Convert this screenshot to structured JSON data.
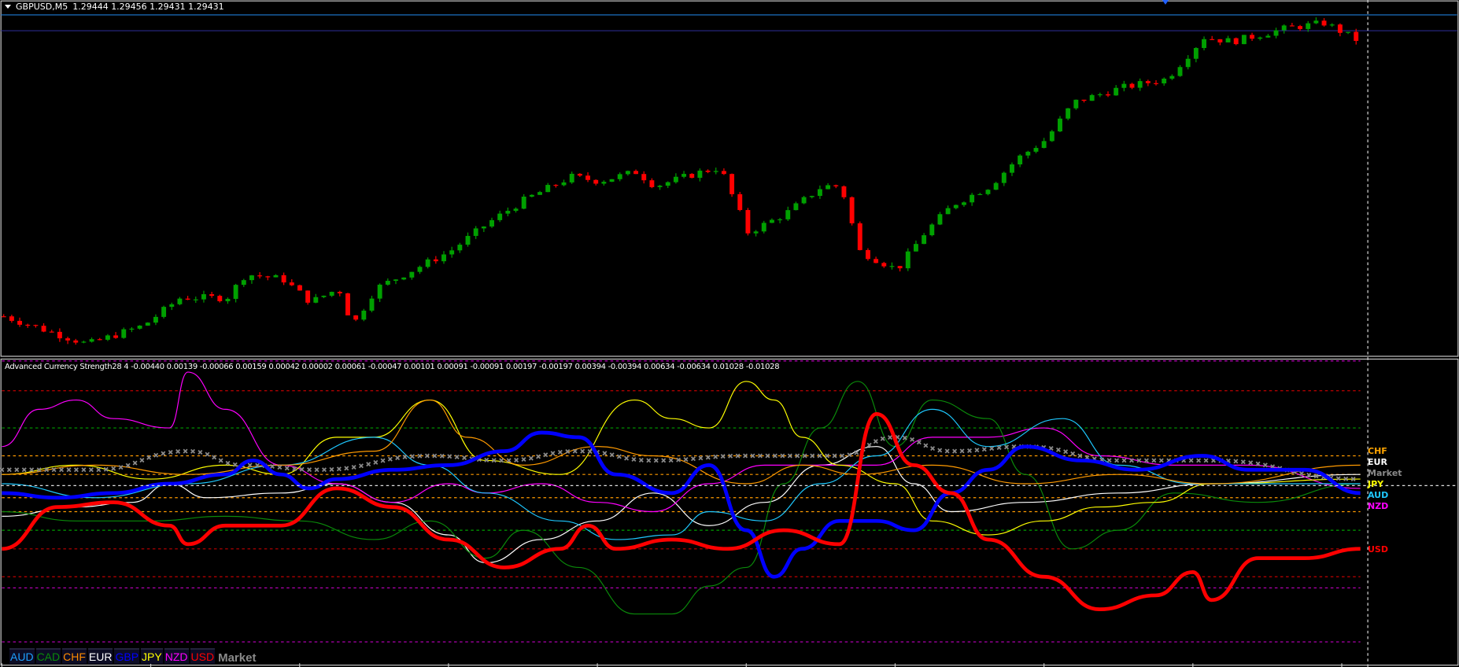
{
  "header": {
    "symbol": "GBPUSD,M5",
    "ohlc": "1.29444 1.29456 1.29431 1.29431"
  },
  "indicator": {
    "title": "Advanced Currency Strength28 4 -0.00440 0.00139 -0.00066 0.00159 0.00042 0.00002 0.00061 -0.00047 0.00101 0.00091 -0.00091 0.00197 -0.00197 0.00394 -0.00394 0.00634 -0.00634 0.01028 -0.01028"
  },
  "legend": {
    "buttons": [
      {
        "label": "AUD",
        "color": "#1ea0ff"
      },
      {
        "label": "CAD",
        "color": "#0a8a0a"
      },
      {
        "label": "CHF",
        "color": "#ff8c00"
      },
      {
        "label": "EUR",
        "color": "#ffffff"
      },
      {
        "label": "GBP",
        "color": "#0000ff"
      },
      {
        "label": "JPY",
        "color": "#ffff00"
      },
      {
        "label": "NZD",
        "color": "#ff00ff"
      },
      {
        "label": "USD",
        "color": "#ff0000"
      }
    ],
    "market": "Market"
  },
  "right_labels": [
    {
      "label": "CHF",
      "color": "#ffa500"
    },
    {
      "label": "EUR",
      "color": "#ffffff"
    },
    {
      "label": "Market",
      "color": "#8a8a8a"
    },
    {
      "label": "JPY",
      "color": "#ffff00"
    },
    {
      "label": "AUD",
      "color": "#1ec8ff"
    },
    {
      "label": "NZD",
      "color": "#ff00ff"
    },
    {
      "label": "USD",
      "color": "#ff0000"
    }
  ],
  "chart_data": [
    {
      "type": "candlestick",
      "symbol": "GBPUSD",
      "timeframe": "M5",
      "bull_color": "#00a000",
      "bear_color": "#ff0000",
      "close_anchors": [
        [
          0,
          1.2899
        ],
        [
          9,
          1.28945
        ],
        [
          15,
          1.28975
        ],
        [
          19,
          1.2902
        ],
        [
          24,
          1.2902
        ],
        [
          26,
          1.29058
        ],
        [
          30,
          1.2905
        ],
        [
          33,
          1.29013
        ],
        [
          36,
          1.29035
        ],
        [
          37.5,
          1.28975
        ],
        [
          40,
          1.29035
        ],
        [
          44,
          1.29065
        ],
        [
          48,
          1.29095
        ],
        [
          52,
          1.2914
        ],
        [
          56,
          1.29178
        ],
        [
          61,
          1.29215
        ],
        [
          64,
          1.29208
        ],
        [
          68,
          1.29223
        ],
        [
          70,
          1.292
        ],
        [
          75,
          1.29223
        ],
        [
          77,
          1.2923
        ],
        [
          80,
          1.29125
        ],
        [
          84,
          1.29155
        ],
        [
          88,
          1.292
        ],
        [
          90,
          1.292
        ],
        [
          92,
          1.29095
        ],
        [
          96,
          1.29065
        ],
        [
          99,
          1.29125
        ],
        [
          102,
          1.2917
        ],
        [
          106,
          1.292
        ],
        [
          109,
          1.29245
        ],
        [
          112,
          1.29275
        ],
        [
          115,
          1.29335
        ],
        [
          120,
          1.29358
        ],
        [
          125,
          1.29373
        ],
        [
          129,
          1.2944
        ],
        [
          132,
          1.29433
        ],
        [
          138,
          1.29455
        ],
        [
          142,
          1.29463
        ],
        [
          146,
          1.29431
        ]
      ]
    },
    {
      "type": "line",
      "series": [
        {
          "name": "USD",
          "color": "#ff0000",
          "width": 4,
          "points": [
            [
              0,
              -68
            ],
            [
              6,
              -23
            ],
            [
              12,
              -18
            ],
            [
              18,
              -43
            ],
            [
              20,
              -63
            ],
            [
              24,
              -43
            ],
            [
              30,
              -43
            ],
            [
              36,
              -3
            ],
            [
              42,
              -23
            ],
            [
              48,
              -58
            ],
            [
              54,
              -88
            ],
            [
              60,
              -68
            ],
            [
              63,
              -43
            ],
            [
              66,
              -68
            ],
            [
              72,
              -58
            ],
            [
              78,
              -68
            ],
            [
              84,
              -48
            ],
            [
              90,
              -63
            ],
            [
              94,
              77
            ],
            [
              98,
              22
            ],
            [
              102,
              -8
            ],
            [
              106,
              -58
            ],
            [
              112,
              -98
            ],
            [
              118,
              -133
            ],
            [
              124,
              -118
            ],
            [
              128,
              -93
            ],
            [
              130,
              -123
            ],
            [
              135,
              -78
            ],
            [
              140,
              -78
            ],
            [
              146,
              -68
            ]
          ]
        },
        {
          "name": "GBP",
          "color": "#0000ff",
          "width": 4,
          "points": [
            [
              0,
              -8
            ],
            [
              6,
              -13
            ],
            [
              12,
              -8
            ],
            [
              18,
              2
            ],
            [
              24,
              12
            ],
            [
              27,
              27
            ],
            [
              30,
              12
            ],
            [
              33,
              -3
            ],
            [
              36,
              7
            ],
            [
              42,
              17
            ],
            [
              48,
              22
            ],
            [
              54,
              37
            ],
            [
              58,
              57
            ],
            [
              62,
              52
            ],
            [
              66,
              12
            ],
            [
              72,
              -8
            ],
            [
              76,
              22
            ],
            [
              80,
              -48
            ],
            [
              83,
              -98
            ],
            [
              86,
              -68
            ],
            [
              90,
              -38
            ],
            [
              94,
              -38
            ],
            [
              98,
              -48
            ],
            [
              102,
              -8
            ],
            [
              106,
              17
            ],
            [
              110,
              42
            ],
            [
              116,
              27
            ],
            [
              122,
              17
            ],
            [
              129,
              32
            ],
            [
              134,
              17
            ],
            [
              140,
              17
            ],
            [
              146,
              -8
            ]
          ]
        },
        {
          "name": "Market",
          "color": "#8a8a8a",
          "width": 2,
          "marker": "x",
          "points": [
            [
              0,
              17
            ],
            [
              10,
              17
            ],
            [
              20,
              37
            ],
            [
              26,
              22
            ],
            [
              34,
              17
            ],
            [
              46,
              32
            ],
            [
              54,
              27
            ],
            [
              62,
              37
            ],
            [
              70,
              27
            ],
            [
              80,
              32
            ],
            [
              90,
              32
            ],
            [
              96,
              52
            ],
            [
              102,
              37
            ],
            [
              110,
              42
            ],
            [
              120,
              27
            ],
            [
              130,
              27
            ],
            [
              146,
              7
            ]
          ]
        },
        {
          "name": "CHF",
          "color": "#ff9a00",
          "width": 1,
          "points": [
            [
              0,
              12
            ],
            [
              10,
              22
            ],
            [
              20,
              12
            ],
            [
              30,
              22
            ],
            [
              40,
              37
            ],
            [
              46,
              92
            ],
            [
              50,
              52
            ],
            [
              56,
              22
            ],
            [
              64,
              42
            ],
            [
              70,
              32
            ],
            [
              80,
              2
            ],
            [
              86,
              22
            ],
            [
              92,
              12
            ],
            [
              100,
              22
            ],
            [
              110,
              2
            ],
            [
              120,
              12
            ],
            [
              130,
              2
            ],
            [
              146,
              22
            ]
          ]
        },
        {
          "name": "AUD",
          "color": "#1ec8ff",
          "width": 1,
          "points": [
            [
              0,
              2
            ],
            [
              10,
              -13
            ],
            [
              20,
              2
            ],
            [
              30,
              22
            ],
            [
              40,
              52
            ],
            [
              46,
              22
            ],
            [
              52,
              -8
            ],
            [
              60,
              -38
            ],
            [
              66,
              -58
            ],
            [
              72,
              -53
            ],
            [
              76,
              -28
            ],
            [
              82,
              -38
            ],
            [
              88,
              2
            ],
            [
              94,
              32
            ],
            [
              100,
              82
            ],
            [
              106,
              42
            ],
            [
              114,
              72
            ],
            [
              120,
              22
            ],
            [
              128,
              2
            ],
            [
              146,
              2
            ]
          ]
        },
        {
          "name": "JPY",
          "color": "#ffff00",
          "width": 1,
          "points": [
            [
              0,
              12
            ],
            [
              8,
              22
            ],
            [
              16,
              7
            ],
            [
              24,
              22
            ],
            [
              30,
              12
            ],
            [
              36,
              52
            ],
            [
              40,
              52
            ],
            [
              46,
              92
            ],
            [
              52,
              27
            ],
            [
              60,
              12
            ],
            [
              68,
              92
            ],
            [
              72,
              72
            ],
            [
              76,
              62
            ],
            [
              80,
              112
            ],
            [
              83,
              92
            ],
            [
              86,
              52
            ],
            [
              90,
              22
            ],
            [
              96,
              2
            ],
            [
              100,
              -38
            ],
            [
              106,
              -53
            ],
            [
              112,
              -38
            ],
            [
              118,
              -23
            ],
            [
              124,
              -18
            ],
            [
              130,
              2
            ],
            [
              146,
              7
            ]
          ]
        },
        {
          "name": "CAD",
          "color": "#0a8a0a",
          "width": 1,
          "points": [
            [
              0,
              -28
            ],
            [
              8,
              -38
            ],
            [
              16,
              -38
            ],
            [
              24,
              -33
            ],
            [
              32,
              -38
            ],
            [
              40,
              -58
            ],
            [
              46,
              -38
            ],
            [
              52,
              -78
            ],
            [
              56,
              -48
            ],
            [
              62,
              -88
            ],
            [
              68,
              -138
            ],
            [
              72,
              -138
            ],
            [
              76,
              -108
            ],
            [
              80,
              -88
            ],
            [
              84,
              2
            ],
            [
              88,
              62
            ],
            [
              92,
              112
            ],
            [
              96,
              42
            ],
            [
              100,
              92
            ],
            [
              106,
              72
            ],
            [
              110,
              12
            ],
            [
              115,
              -68
            ],
            [
              120,
              -48
            ],
            [
              126,
              -8
            ],
            [
              135,
              -18
            ],
            [
              146,
              2
            ]
          ]
        },
        {
          "name": "NZD",
          "color": "#ff00ff",
          "width": 1,
          "points": [
            [
              0,
              42
            ],
            [
              4,
              82
            ],
            [
              8,
              92
            ],
            [
              12,
              72
            ],
            [
              18,
              62
            ],
            [
              20,
              122
            ],
            [
              24,
              82
            ],
            [
              30,
              22
            ],
            [
              36,
              2
            ],
            [
              42,
              -18
            ],
            [
              48,
              2
            ],
            [
              52,
              -8
            ],
            [
              58,
              2
            ],
            [
              64,
              -18
            ],
            [
              70,
              -28
            ],
            [
              76,
              2
            ],
            [
              82,
              22
            ],
            [
              88,
              22
            ],
            [
              94,
              22
            ],
            [
              100,
              52
            ],
            [
              106,
              52
            ],
            [
              112,
              62
            ],
            [
              118,
              32
            ],
            [
              126,
              22
            ],
            [
              134,
              22
            ],
            [
              146,
              -3
            ]
          ]
        },
        {
          "name": "EUR",
          "color": "#ffffff",
          "width": 1,
          "points": [
            [
              0,
              -33
            ],
            [
              8,
              -23
            ],
            [
              14,
              -18
            ],
            [
              18,
              2
            ],
            [
              22,
              -13
            ],
            [
              30,
              -8
            ],
            [
              36,
              2
            ],
            [
              42,
              -18
            ],
            [
              48,
              -53
            ],
            [
              52,
              -83
            ],
            [
              58,
              -58
            ],
            [
              64,
              -38
            ],
            [
              70,
              -8
            ],
            [
              76,
              -43
            ],
            [
              82,
              -18
            ],
            [
              88,
              22
            ],
            [
              94,
              42
            ],
            [
              98,
              2
            ],
            [
              102,
              -28
            ],
            [
              110,
              -18
            ],
            [
              120,
              -8
            ],
            [
              130,
              2
            ],
            [
              146,
              12
            ]
          ]
        }
      ],
      "levels": [
        {
          "value": 134,
          "color": "#c000c0"
        },
        {
          "value": 102,
          "color": "#c00000"
        },
        {
          "value": 62,
          "color": "#00a000"
        },
        {
          "value": 32,
          "color": "#ff9a00"
        },
        {
          "value": 12,
          "color": "#ff9a00"
        },
        {
          "value": -13,
          "color": "#ff9a00"
        },
        {
          "value": -28,
          "color": "#ff9a00"
        },
        {
          "value": -48,
          "color": "#00a000"
        },
        {
          "value": -68,
          "color": "#c00000"
        },
        {
          "value": -98,
          "color": "#c00000"
        },
        {
          "value": -110,
          "color": "#c000c0"
        },
        {
          "value": -168,
          "color": "#c000c0"
        }
      ]
    }
  ]
}
